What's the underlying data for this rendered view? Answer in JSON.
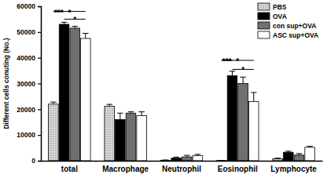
{
  "chart_data": {
    "type": "bar",
    "ylabel": "Different cells conuting (No.)",
    "categories": [
      "total",
      "Macrophage",
      "Neutrophil",
      "Eosinophil",
      "Lymphocyte"
    ],
    "series": [
      {
        "name": "PBS",
        "color": "#d9d9d9",
        "values": [
          22000,
          21200,
          200,
          100,
          800
        ],
        "errors": [
          800,
          700,
          100,
          50,
          200
        ]
      },
      {
        "name": "OVA",
        "color": "#000000",
        "values": [
          53000,
          16000,
          1000,
          33000,
          3300
        ],
        "errors": [
          800,
          2500,
          400,
          1800,
          400
        ]
      },
      {
        "name": "con sup+OVA",
        "color": "#707070",
        "values": [
          51500,
          18500,
          1500,
          30000,
          2200
        ],
        "errors": [
          700,
          500,
          600,
          2500,
          600
        ]
      },
      {
        "name": "ASC sup+OVA",
        "color": "#ffffff",
        "values": [
          47500,
          17500,
          2000,
          23000,
          5200
        ],
        "errors": [
          2000,
          1500,
          500,
          3500,
          400
        ]
      }
    ],
    "ylim": [
      0,
      60000
    ],
    "yticks": [
      0,
      10000,
      20000,
      30000,
      40000,
      50000,
      60000
    ],
    "grid": false,
    "legend": "upper right",
    "annotations": [
      {
        "category": "total",
        "from": "PBS",
        "to": "OVA",
        "y": 58000,
        "label": "***"
      },
      {
        "category": "total",
        "from": "PBS",
        "to": "ASC sup+OVA",
        "y": 58000,
        "label": "*"
      },
      {
        "category": "total",
        "from": "OVA",
        "to": "ASC sup+OVA",
        "y": 55000,
        "label": "*"
      },
      {
        "category": "Eosinophil",
        "from": "PBS",
        "to": "OVA",
        "y": 39000,
        "label": "***"
      },
      {
        "category": "Eosinophil",
        "from": "PBS",
        "to": "ASC sup+OVA",
        "y": 39000,
        "label": "*"
      },
      {
        "category": "Eosinophil",
        "from": "OVA",
        "to": "ASC sup+OVA",
        "y": 35500,
        "label": "*"
      }
    ]
  }
}
